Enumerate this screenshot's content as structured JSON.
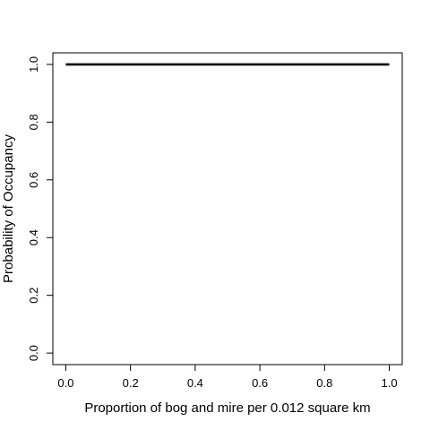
{
  "chart_data": {
    "type": "line",
    "xlabel": "Proportion of bog and mire per 0.012 square km",
    "ylabel": "Probability of Occupancy",
    "xlim": [
      -0.04,
      1.04
    ],
    "ylim": [
      -0.04,
      1.04
    ],
    "x_ticks": [
      "0.0",
      "0.2",
      "0.4",
      "0.6",
      "0.8",
      "1.0"
    ],
    "y_ticks": [
      "0.0",
      "0.2",
      "0.4",
      "0.6",
      "0.8",
      "1.0"
    ],
    "grid": false,
    "legend": "none",
    "series": [
      {
        "x": [
          0.0,
          0.2,
          0.4,
          0.6,
          0.8,
          1.0
        ],
        "y": [
          1.0,
          1.0,
          1.0,
          1.0,
          1.0,
          1.0
        ],
        "color": "#000000"
      }
    ]
  }
}
